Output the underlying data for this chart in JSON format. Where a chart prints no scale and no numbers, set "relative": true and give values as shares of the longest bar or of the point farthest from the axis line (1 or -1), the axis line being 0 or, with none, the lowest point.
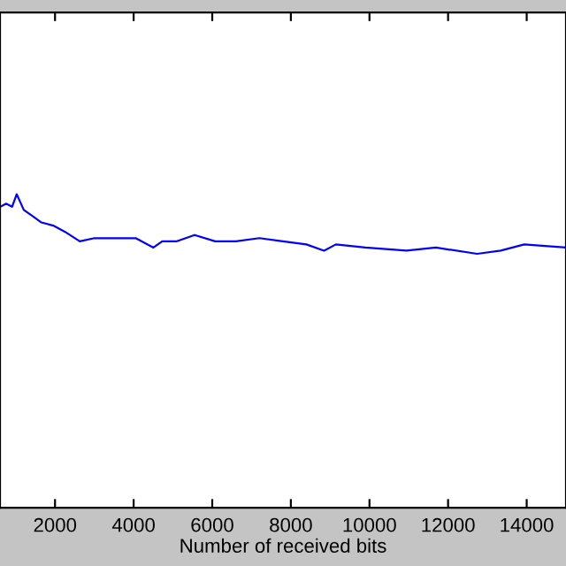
{
  "chart_data": {
    "type": "line",
    "xlabel": "Number of received bits",
    "relative": true,
    "xlim": [
      600,
      15000
    ],
    "xticks": [
      2000,
      4000,
      6000,
      8000,
      10000,
      12000,
      14000
    ],
    "grid": false,
    "legend": false,
    "tick_labels": "x",
    "series": [
      {
        "color": "#0000ff",
        "x": [
          607,
          757,
          907,
          1025,
          1205,
          1430,
          1654,
          1955,
          2255,
          2629,
          3003,
          3603,
          4052,
          4503,
          4727,
          5101,
          5551,
          6075,
          6599,
          7198,
          7797,
          8396,
          8845,
          9145,
          9894,
          10942,
          11690,
          12739,
          13338,
          13937,
          14985
        ],
        "values": [
          0.96,
          0.97,
          0.96,
          1.0,
          0.95,
          0.93,
          0.91,
          0.9,
          0.88,
          0.85,
          0.86,
          0.86,
          0.86,
          0.83,
          0.85,
          0.85,
          0.87,
          0.85,
          0.85,
          0.86,
          0.85,
          0.84,
          0.82,
          0.84,
          0.83,
          0.82,
          0.83,
          0.81,
          0.82,
          0.84,
          0.83
        ]
      }
    ]
  }
}
